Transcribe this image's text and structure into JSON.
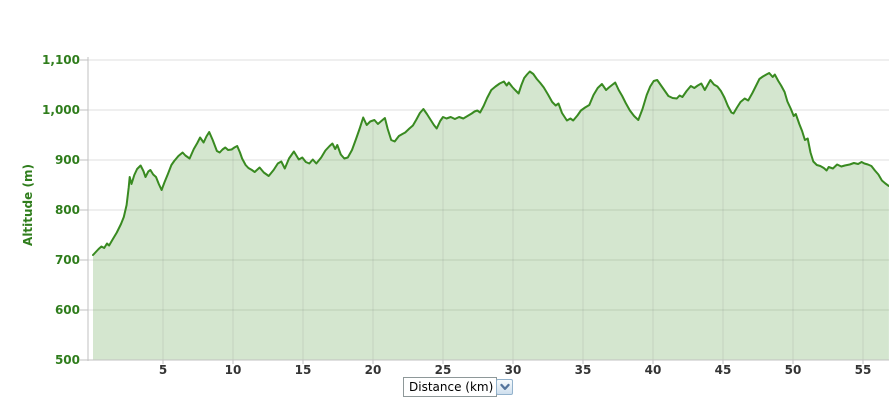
{
  "chart_data": {
    "type": "area",
    "title": "",
    "y_axis": {
      "label": "Altitude (m)",
      "tick_labels": [
        "500",
        "600",
        "700",
        "800",
        "900",
        "1,000",
        "1,100"
      ],
      "tick_values": [
        500,
        600,
        700,
        800,
        900,
        1000,
        1100
      ],
      "range": [
        500,
        1100
      ],
      "unit": "m"
    },
    "x_axis": {
      "label": "Distance (km)",
      "tick_labels": [
        "5",
        "10",
        "15",
        "20",
        "25",
        "30",
        "35",
        "40",
        "45",
        "50",
        "55"
      ],
      "tick_values": [
        5,
        10,
        15,
        20,
        25,
        30,
        35,
        40,
        45,
        50,
        55
      ],
      "range": [
        0,
        56.9
      ],
      "unit": "km"
    },
    "legend": "none",
    "grid": {
      "horizontal": true,
      "vertical": "inside-fill-only"
    },
    "series": [
      {
        "name": "elevation-profile",
        "points": [
          [
            0.0,
            710
          ],
          [
            0.2,
            716
          ],
          [
            0.4,
            722
          ],
          [
            0.6,
            727
          ],
          [
            0.8,
            724
          ],
          [
            1.0,
            733
          ],
          [
            1.15,
            729
          ],
          [
            1.4,
            741
          ],
          [
            1.7,
            755
          ],
          [
            2.0,
            772
          ],
          [
            2.2,
            786
          ],
          [
            2.4,
            810
          ],
          [
            2.55,
            845
          ],
          [
            2.62,
            866
          ],
          [
            2.75,
            852
          ],
          [
            2.95,
            870
          ],
          [
            3.15,
            882
          ],
          [
            3.4,
            889
          ],
          [
            3.6,
            878
          ],
          [
            3.75,
            866
          ],
          [
            3.95,
            877
          ],
          [
            4.1,
            880
          ],
          [
            4.3,
            871
          ],
          [
            4.5,
            866
          ],
          [
            4.7,
            852
          ],
          [
            4.9,
            840
          ],
          [
            5.1,
            855
          ],
          [
            5.35,
            872
          ],
          [
            5.6,
            890
          ],
          [
            5.8,
            898
          ],
          [
            6.1,
            908
          ],
          [
            6.4,
            915
          ],
          [
            6.6,
            909
          ],
          [
            6.9,
            903
          ],
          [
            7.2,
            922
          ],
          [
            7.45,
            934
          ],
          [
            7.65,
            945
          ],
          [
            7.9,
            935
          ],
          [
            8.1,
            947
          ],
          [
            8.3,
            956
          ],
          [
            8.55,
            940
          ],
          [
            8.85,
            918
          ],
          [
            9.05,
            915
          ],
          [
            9.25,
            921
          ],
          [
            9.45,
            925
          ],
          [
            9.65,
            920
          ],
          [
            9.9,
            921
          ],
          [
            10.1,
            925
          ],
          [
            10.3,
            928
          ],
          [
            10.5,
            915
          ],
          [
            10.65,
            903
          ],
          [
            10.9,
            890
          ],
          [
            11.1,
            884
          ],
          [
            11.35,
            880
          ],
          [
            11.55,
            876
          ],
          [
            11.9,
            885
          ],
          [
            12.2,
            875
          ],
          [
            12.55,
            868
          ],
          [
            12.9,
            880
          ],
          [
            13.2,
            893
          ],
          [
            13.45,
            897
          ],
          [
            13.7,
            883
          ],
          [
            14.0,
            903
          ],
          [
            14.35,
            917
          ],
          [
            14.7,
            901
          ],
          [
            14.95,
            905
          ],
          [
            15.2,
            896
          ],
          [
            15.45,
            893
          ],
          [
            15.7,
            901
          ],
          [
            15.95,
            893
          ],
          [
            16.3,
            905
          ],
          [
            16.6,
            919
          ],
          [
            16.9,
            928
          ],
          [
            17.1,
            933
          ],
          [
            17.3,
            922
          ],
          [
            17.45,
            930
          ],
          [
            17.7,
            911
          ],
          [
            17.95,
            903
          ],
          [
            18.2,
            905
          ],
          [
            18.5,
            920
          ],
          [
            18.8,
            943
          ],
          [
            19.05,
            963
          ],
          [
            19.3,
            985
          ],
          [
            19.55,
            970
          ],
          [
            19.8,
            977
          ],
          [
            20.1,
            980
          ],
          [
            20.35,
            972
          ],
          [
            20.6,
            978
          ],
          [
            20.85,
            984
          ],
          [
            21.05,
            962
          ],
          [
            21.3,
            940
          ],
          [
            21.55,
            937
          ],
          [
            21.85,
            948
          ],
          [
            22.1,
            952
          ],
          [
            22.3,
            955
          ],
          [
            22.6,
            963
          ],
          [
            22.85,
            969
          ],
          [
            23.1,
            981
          ],
          [
            23.35,
            994
          ],
          [
            23.6,
            1002
          ],
          [
            23.85,
            992
          ],
          [
            24.1,
            981
          ],
          [
            24.35,
            970
          ],
          [
            24.55,
            963
          ],
          [
            24.8,
            978
          ],
          [
            25.0,
            986
          ],
          [
            25.25,
            983
          ],
          [
            25.55,
            986
          ],
          [
            25.85,
            982
          ],
          [
            26.15,
            986
          ],
          [
            26.45,
            983
          ],
          [
            26.75,
            988
          ],
          [
            27.05,
            993
          ],
          [
            27.25,
            997
          ],
          [
            27.45,
            999
          ],
          [
            27.65,
            995
          ],
          [
            27.9,
            1008
          ],
          [
            28.15,
            1024
          ],
          [
            28.45,
            1040
          ],
          [
            28.75,
            1047
          ],
          [
            29.05,
            1053
          ],
          [
            29.35,
            1057
          ],
          [
            29.55,
            1049
          ],
          [
            29.7,
            1055
          ],
          [
            29.95,
            1046
          ],
          [
            30.15,
            1040
          ],
          [
            30.4,
            1033
          ],
          [
            30.6,
            1050
          ],
          [
            30.8,
            1064
          ],
          [
            31.0,
            1071
          ],
          [
            31.2,
            1077
          ],
          [
            31.45,
            1072
          ],
          [
            31.7,
            1062
          ],
          [
            31.95,
            1054
          ],
          [
            32.2,
            1045
          ],
          [
            32.5,
            1031
          ],
          [
            32.8,
            1016
          ],
          [
            33.05,
            1009
          ],
          [
            33.25,
            1013
          ],
          [
            33.5,
            994
          ],
          [
            33.85,
            979
          ],
          [
            34.1,
            983
          ],
          [
            34.3,
            979
          ],
          [
            34.6,
            989
          ],
          [
            34.85,
            999
          ],
          [
            35.15,
            1005
          ],
          [
            35.45,
            1010
          ],
          [
            35.75,
            1030
          ],
          [
            36.05,
            1044
          ],
          [
            36.35,
            1052
          ],
          [
            36.65,
            1040
          ],
          [
            36.85,
            1045
          ],
          [
            37.3,
            1055
          ],
          [
            37.55,
            1040
          ],
          [
            37.8,
            1028
          ],
          [
            38.05,
            1014
          ],
          [
            38.35,
            999
          ],
          [
            38.65,
            988
          ],
          [
            38.95,
            980
          ],
          [
            39.25,
            1002
          ],
          [
            39.55,
            1030
          ],
          [
            39.8,
            1047
          ],
          [
            40.05,
            1058
          ],
          [
            40.3,
            1060
          ],
          [
            40.55,
            1050
          ],
          [
            40.8,
            1040
          ],
          [
            41.1,
            1028
          ],
          [
            41.4,
            1024
          ],
          [
            41.7,
            1023
          ],
          [
            41.9,
            1029
          ],
          [
            42.1,
            1026
          ],
          [
            42.4,
            1038
          ],
          [
            42.7,
            1048
          ],
          [
            42.95,
            1044
          ],
          [
            43.2,
            1049
          ],
          [
            43.45,
            1053
          ],
          [
            43.7,
            1040
          ],
          [
            43.9,
            1050
          ],
          [
            44.1,
            1060
          ],
          [
            44.35,
            1051
          ],
          [
            44.6,
            1047
          ],
          [
            44.85,
            1038
          ],
          [
            45.1,
            1025
          ],
          [
            45.35,
            1008
          ],
          [
            45.6,
            995
          ],
          [
            45.75,
            993
          ],
          [
            46.0,
            1005
          ],
          [
            46.25,
            1016
          ],
          [
            46.55,
            1023
          ],
          [
            46.8,
            1019
          ],
          [
            47.1,
            1034
          ],
          [
            47.35,
            1048
          ],
          [
            47.6,
            1062
          ],
          [
            47.85,
            1067
          ],
          [
            48.1,
            1071
          ],
          [
            48.3,
            1074
          ],
          [
            48.55,
            1066
          ],
          [
            48.7,
            1071
          ],
          [
            48.95,
            1058
          ],
          [
            49.15,
            1049
          ],
          [
            49.4,
            1036
          ],
          [
            49.6,
            1017
          ],
          [
            49.85,
            1002
          ],
          [
            50.05,
            988
          ],
          [
            50.2,
            992
          ],
          [
            50.45,
            972
          ],
          [
            50.65,
            958
          ],
          [
            50.85,
            940
          ],
          [
            51.05,
            943
          ],
          [
            51.25,
            915
          ],
          [
            51.45,
            897
          ],
          [
            51.7,
            890
          ],
          [
            51.95,
            888
          ],
          [
            52.2,
            884
          ],
          [
            52.4,
            879
          ],
          [
            52.55,
            886
          ],
          [
            52.85,
            883
          ],
          [
            53.15,
            891
          ],
          [
            53.45,
            887
          ],
          [
            53.7,
            889
          ],
          [
            54.05,
            891
          ],
          [
            54.35,
            894
          ],
          [
            54.65,
            892
          ],
          [
            54.9,
            896
          ],
          [
            55.1,
            893
          ],
          [
            55.35,
            891
          ],
          [
            55.6,
            888
          ],
          [
            55.85,
            879
          ],
          [
            56.1,
            871
          ],
          [
            56.35,
            859
          ],
          [
            56.6,
            853
          ],
          [
            56.85,
            848
          ]
        ]
      }
    ],
    "colors": {
      "line": "#398a21",
      "fill": "rgba(58,142,35,0.22)",
      "gridline": "#dfdfdf",
      "vertical_gridline": "rgba(110,110,110,0.16)",
      "axis": "#c2c2c2",
      "y_tick_label": "#2f7d1c",
      "x_tick_label": "#343434"
    }
  },
  "controls": {
    "x_axis_select": {
      "value": "Distance (km)",
      "icon": "chevron-down-icon"
    }
  }
}
